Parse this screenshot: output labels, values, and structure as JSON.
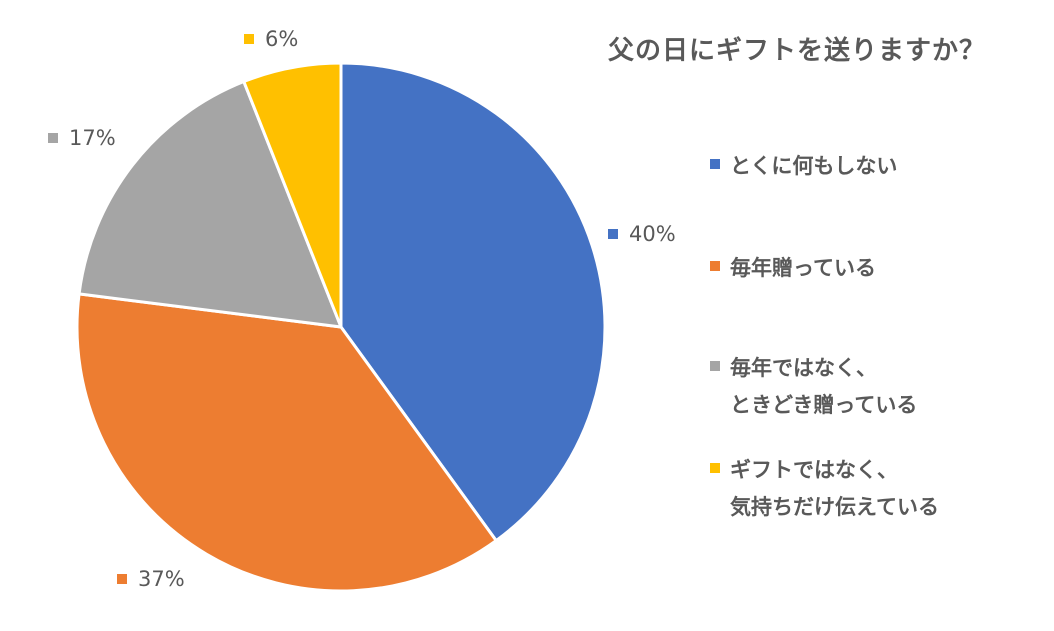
{
  "chart_data": {
    "type": "pie",
    "title": "父の日にギフトを送りますか？",
    "categories": [
      "とくに何もしない",
      "毎年贈っている",
      "毎年ではなく、\nときどき贈っている",
      "ギフトではなく、\n気持ちだけ伝えている"
    ],
    "values": [
      40,
      37,
      17,
      6
    ],
    "data_labels": [
      "40%",
      "37%",
      "17%",
      "6%"
    ],
    "colors": [
      "#4472C4",
      "#ED7D31",
      "#A5A5A5",
      "#FFC000"
    ],
    "start_angle_deg": 0,
    "direction": "clockwise",
    "legend_position": "right"
  }
}
